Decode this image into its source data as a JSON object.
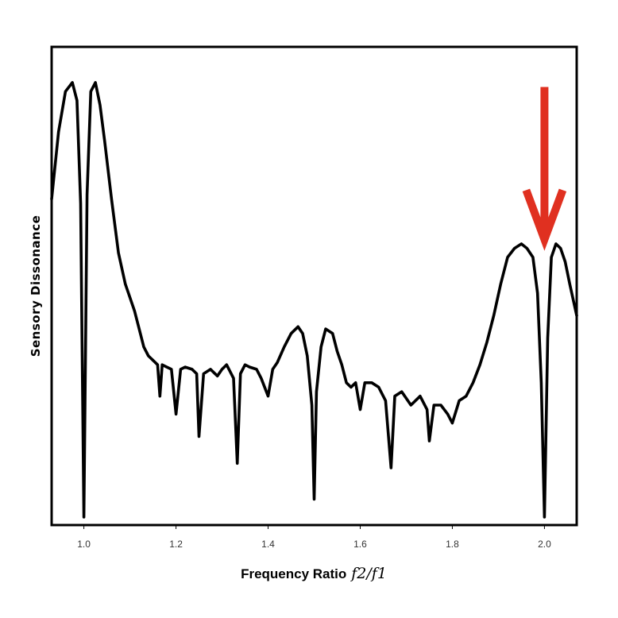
{
  "chart_data": {
    "type": "line",
    "title": "",
    "xlabel_text": "Frequency Ratio",
    "xlabel_math": "f2/f1",
    "ylabel": "Sensory Dissonance",
    "xlim": [
      0.93,
      2.07
    ],
    "ylim": [
      0,
      1
    ],
    "grid": false,
    "x_ticks": [
      1.0,
      1.2,
      1.4,
      1.6,
      1.8,
      2.0
    ],
    "x_tick_labels": [
      "1.0",
      "1.2",
      "1.4",
      "1.6",
      "1.8",
      "2.0"
    ],
    "y_ticks": [],
    "series": [
      {
        "line_color": "#000000",
        "x": [
          0.93,
          0.945,
          0.96,
          0.975,
          0.985,
          0.993,
          1.0,
          1.007,
          1.015,
          1.025,
          1.035,
          1.045,
          1.06,
          1.075,
          1.09,
          1.1,
          1.11,
          1.12,
          1.13,
          1.14,
          1.15,
          1.16,
          1.165,
          1.17,
          1.18,
          1.19,
          1.2,
          1.21,
          1.22,
          1.235,
          1.245,
          1.25,
          1.26,
          1.275,
          1.29,
          1.3,
          1.31,
          1.325,
          1.333,
          1.34,
          1.35,
          1.36,
          1.375,
          1.385,
          1.4,
          1.41,
          1.42,
          1.435,
          1.45,
          1.465,
          1.475,
          1.485,
          1.495,
          1.5,
          1.505,
          1.515,
          1.525,
          1.54,
          1.55,
          1.56,
          1.57,
          1.58,
          1.59,
          1.6,
          1.61,
          1.625,
          1.64,
          1.655,
          1.667,
          1.675,
          1.69,
          1.71,
          1.73,
          1.745,
          1.75,
          1.76,
          1.775,
          1.79,
          1.8,
          1.815,
          1.83,
          1.845,
          1.86,
          1.875,
          1.89,
          1.905,
          1.92,
          1.935,
          1.95,
          1.962,
          1.975,
          1.985,
          1.993,
          2.0,
          2.007,
          2.015,
          2.025,
          2.035,
          2.045,
          2.055,
          2.07
        ],
        "y": [
          0.71,
          0.86,
          0.95,
          0.97,
          0.93,
          0.7,
          0.0,
          0.72,
          0.95,
          0.97,
          0.92,
          0.84,
          0.71,
          0.59,
          0.52,
          0.49,
          0.46,
          0.42,
          0.38,
          0.36,
          0.35,
          0.34,
          0.27,
          0.34,
          0.335,
          0.33,
          0.23,
          0.33,
          0.335,
          0.33,
          0.32,
          0.18,
          0.32,
          0.33,
          0.315,
          0.33,
          0.34,
          0.31,
          0.12,
          0.32,
          0.34,
          0.335,
          0.33,
          0.31,
          0.27,
          0.33,
          0.345,
          0.38,
          0.41,
          0.425,
          0.41,
          0.36,
          0.25,
          0.04,
          0.28,
          0.38,
          0.42,
          0.41,
          0.37,
          0.34,
          0.3,
          0.29,
          0.3,
          0.24,
          0.3,
          0.3,
          0.29,
          0.26,
          0.11,
          0.27,
          0.28,
          0.25,
          0.27,
          0.24,
          0.17,
          0.25,
          0.25,
          0.23,
          0.21,
          0.26,
          0.27,
          0.3,
          0.34,
          0.39,
          0.45,
          0.52,
          0.58,
          0.6,
          0.61,
          0.6,
          0.58,
          0.5,
          0.3,
          0.0,
          0.4,
          0.58,
          0.61,
          0.6,
          0.57,
          0.52,
          0.45
        ]
      }
    ],
    "annotations": [
      {
        "type": "arrow",
        "color": "#e03020",
        "x": 2.0,
        "y_from": 0.96,
        "y_to": 0.62
      }
    ]
  }
}
